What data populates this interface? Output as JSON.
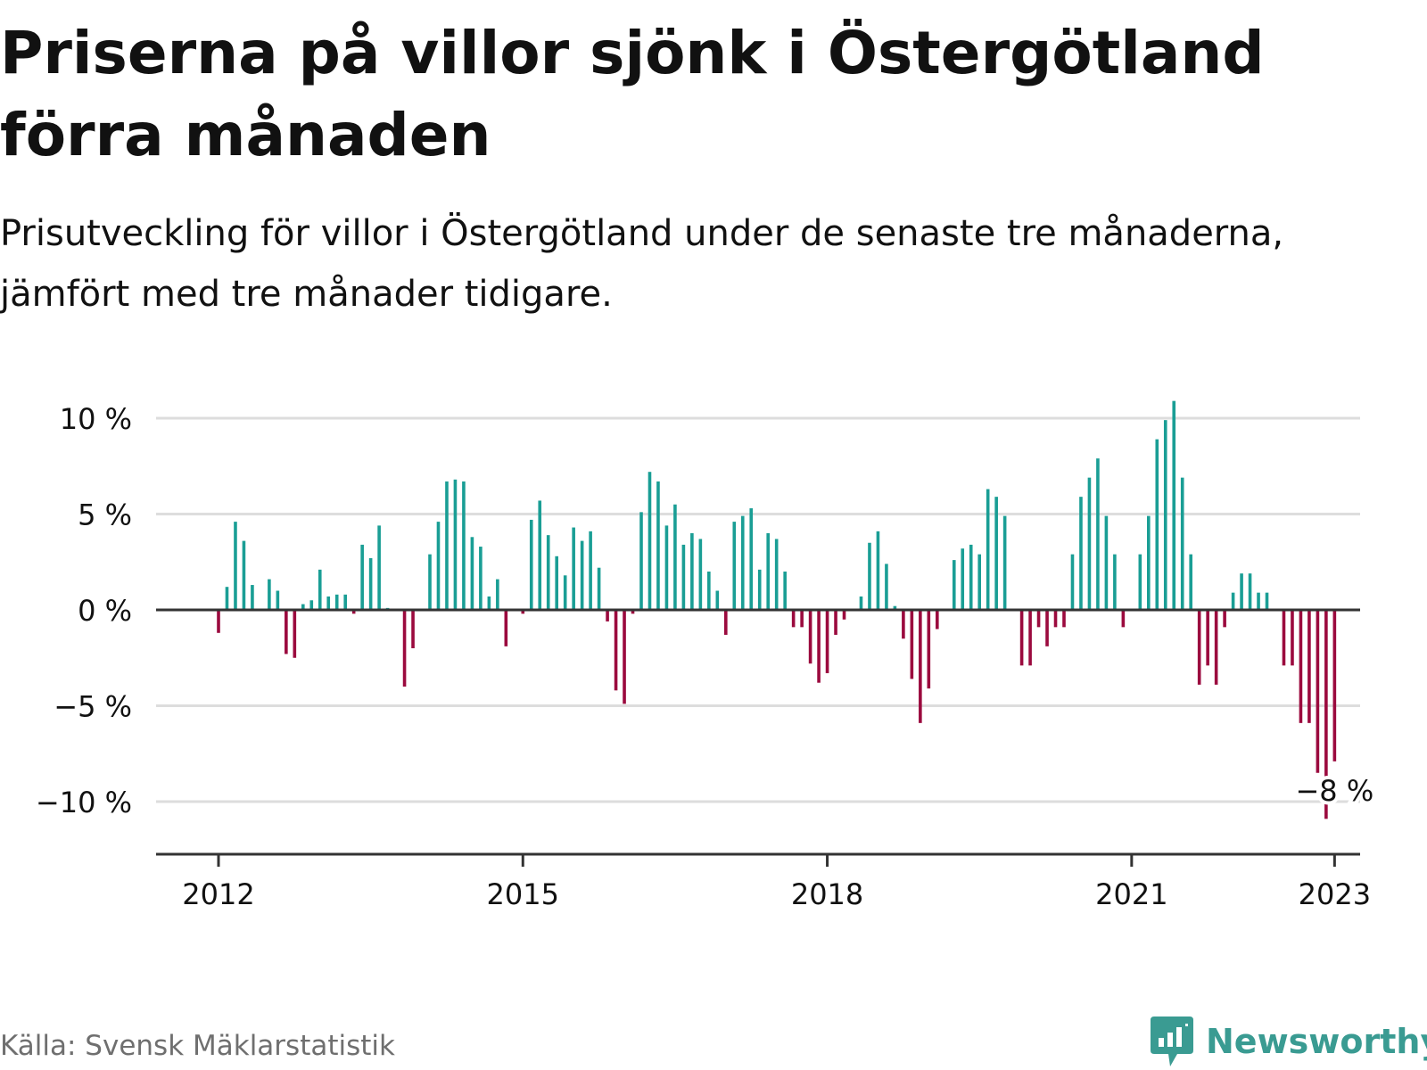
{
  "title": "Priserna på villor sjönk i Östergötland förra månaden",
  "subtitle": "Prisutveckling för villor i Östergötland under de senaste tre månaderna, jämfört med tre månader tidigare.",
  "source": "Källa: Svensk Mäklarstatistik",
  "brand": {
    "name": "Newsworthy",
    "icon": "newsworthy-logo-icon"
  },
  "colors": {
    "positive": "#1a9e95",
    "negative": "#9b0a3e",
    "text": "#111111",
    "grid": "#dddddd",
    "axis": "#333333",
    "muted": "#6f6f6f",
    "brand": "#3a9b92"
  },
  "chart_data": {
    "type": "bar",
    "ylim": [
      -12.5,
      12
    ],
    "yticks": [
      {
        "value": 10,
        "label": "10 %"
      },
      {
        "value": 5,
        "label": "5 %"
      },
      {
        "value": 0,
        "label": "0 %"
      },
      {
        "value": -5,
        "label": "−5 %"
      },
      {
        "value": -10,
        "label": "−10 %"
      }
    ],
    "xticks": [
      {
        "month": "2012-01",
        "label": "2012"
      },
      {
        "month": "2015-01",
        "label": "2015"
      },
      {
        "month": "2018-01",
        "label": "2018"
      },
      {
        "month": "2021-01",
        "label": "2021"
      },
      {
        "month": "2023-01",
        "label": "2023"
      }
    ],
    "grid": true,
    "annotation": {
      "month": "2023-01",
      "text": "−8 %"
    },
    "points": [
      {
        "month": "2012-01",
        "value": -1.2
      },
      {
        "month": "2012-02",
        "value": 1.2
      },
      {
        "month": "2012-03",
        "value": 4.6
      },
      {
        "month": "2012-04",
        "value": 3.6
      },
      {
        "month": "2012-05",
        "value": 1.3
      },
      {
        "month": "2012-07",
        "value": 1.6
      },
      {
        "month": "2012-08",
        "value": 1.0
      },
      {
        "month": "2012-09",
        "value": -2.3
      },
      {
        "month": "2012-10",
        "value": -2.5
      },
      {
        "month": "2012-11",
        "value": 0.3
      },
      {
        "month": "2012-12",
        "value": 0.5
      },
      {
        "month": "2013-01",
        "value": 2.1
      },
      {
        "month": "2013-02",
        "value": 0.7
      },
      {
        "month": "2013-03",
        "value": 0.8
      },
      {
        "month": "2013-04",
        "value": 0.8
      },
      {
        "month": "2013-05",
        "value": -0.2
      },
      {
        "month": "2013-06",
        "value": 3.4
      },
      {
        "month": "2013-07",
        "value": 2.7
      },
      {
        "month": "2013-08",
        "value": 4.4
      },
      {
        "month": "2013-09",
        "value": 0.1
      },
      {
        "month": "2013-11",
        "value": -4.0
      },
      {
        "month": "2013-12",
        "value": -2.0
      },
      {
        "month": "2014-02",
        "value": 2.9
      },
      {
        "month": "2014-03",
        "value": 4.6
      },
      {
        "month": "2014-04",
        "value": 6.7
      },
      {
        "month": "2014-05",
        "value": 6.8
      },
      {
        "month": "2014-06",
        "value": 6.7
      },
      {
        "month": "2014-07",
        "value": 3.8
      },
      {
        "month": "2014-08",
        "value": 3.3
      },
      {
        "month": "2014-09",
        "value": 0.7
      },
      {
        "month": "2014-10",
        "value": 1.6
      },
      {
        "month": "2014-11",
        "value": -1.9
      },
      {
        "month": "2014-12",
        "value": 0.0
      },
      {
        "month": "2015-01",
        "value": -0.2
      },
      {
        "month": "2015-02",
        "value": 4.7
      },
      {
        "month": "2015-03",
        "value": 5.7
      },
      {
        "month": "2015-04",
        "value": 3.9
      },
      {
        "month": "2015-05",
        "value": 2.8
      },
      {
        "month": "2015-06",
        "value": 1.8
      },
      {
        "month": "2015-07",
        "value": 4.3
      },
      {
        "month": "2015-08",
        "value": 3.6
      },
      {
        "month": "2015-09",
        "value": 4.1
      },
      {
        "month": "2015-10",
        "value": 2.2
      },
      {
        "month": "2015-11",
        "value": -0.6
      },
      {
        "month": "2015-12",
        "value": -4.2
      },
      {
        "month": "2016-01",
        "value": -4.9
      },
      {
        "month": "2016-02",
        "value": -0.2
      },
      {
        "month": "2016-03",
        "value": 5.1
      },
      {
        "month": "2016-04",
        "value": 7.2
      },
      {
        "month": "2016-05",
        "value": 6.7
      },
      {
        "month": "2016-06",
        "value": 4.4
      },
      {
        "month": "2016-07",
        "value": 5.5
      },
      {
        "month": "2016-08",
        "value": 3.4
      },
      {
        "month": "2016-09",
        "value": 4.0
      },
      {
        "month": "2016-10",
        "value": 3.7
      },
      {
        "month": "2016-11",
        "value": 2.0
      },
      {
        "month": "2016-12",
        "value": 1.0
      },
      {
        "month": "2017-01",
        "value": -1.3
      },
      {
        "month": "2017-02",
        "value": 4.6
      },
      {
        "month": "2017-03",
        "value": 4.9
      },
      {
        "month": "2017-04",
        "value": 5.3
      },
      {
        "month": "2017-05",
        "value": 2.1
      },
      {
        "month": "2017-06",
        "value": 4.0
      },
      {
        "month": "2017-07",
        "value": 3.7
      },
      {
        "month": "2017-08",
        "value": 2.0
      },
      {
        "month": "2017-09",
        "value": -0.9
      },
      {
        "month": "2017-10",
        "value": -0.9
      },
      {
        "month": "2017-11",
        "value": -2.8
      },
      {
        "month": "2017-12",
        "value": -3.8
      },
      {
        "month": "2018-01",
        "value": -3.3
      },
      {
        "month": "2018-02",
        "value": -1.3
      },
      {
        "month": "2018-03",
        "value": -0.5
      },
      {
        "month": "2018-05",
        "value": 0.7
      },
      {
        "month": "2018-06",
        "value": 3.5
      },
      {
        "month": "2018-07",
        "value": 4.1
      },
      {
        "month": "2018-08",
        "value": 2.4
      },
      {
        "month": "2018-09",
        "value": 0.2
      },
      {
        "month": "2018-10",
        "value": -1.5
      },
      {
        "month": "2018-11",
        "value": -3.6
      },
      {
        "month": "2018-12",
        "value": -5.9
      },
      {
        "month": "2019-01",
        "value": -4.1
      },
      {
        "month": "2019-02",
        "value": -1.0
      },
      {
        "month": "2019-03",
        "value": 0.0
      },
      {
        "month": "2019-04",
        "value": 2.6
      },
      {
        "month": "2019-05",
        "value": 3.2
      },
      {
        "month": "2019-06",
        "value": 3.4
      },
      {
        "month": "2019-07",
        "value": 2.9
      },
      {
        "month": "2019-08",
        "value": 6.3
      },
      {
        "month": "2019-09",
        "value": 5.9
      },
      {
        "month": "2019-10",
        "value": 4.9
      },
      {
        "month": "2019-12",
        "value": -2.9
      },
      {
        "month": "2020-01",
        "value": -2.9
      },
      {
        "month": "2020-02",
        "value": -0.9
      },
      {
        "month": "2020-03",
        "value": -1.9
      },
      {
        "month": "2020-04",
        "value": -0.9
      },
      {
        "month": "2020-05",
        "value": -0.9
      },
      {
        "month": "2020-06",
        "value": 2.9
      },
      {
        "month": "2020-07",
        "value": 5.9
      },
      {
        "month": "2020-08",
        "value": 6.9
      },
      {
        "month": "2020-09",
        "value": 7.9
      },
      {
        "month": "2020-10",
        "value": 4.9
      },
      {
        "month": "2020-11",
        "value": 2.9
      },
      {
        "month": "2020-12",
        "value": -0.9
      },
      {
        "month": "2021-02",
        "value": 2.9
      },
      {
        "month": "2021-03",
        "value": 4.9
      },
      {
        "month": "2021-04",
        "value": 8.9
      },
      {
        "month": "2021-05",
        "value": 9.9
      },
      {
        "month": "2021-06",
        "value": 10.9
      },
      {
        "month": "2021-07",
        "value": 6.9
      },
      {
        "month": "2021-08",
        "value": 2.9
      },
      {
        "month": "2021-09",
        "value": -3.9
      },
      {
        "month": "2021-10",
        "value": -2.9
      },
      {
        "month": "2021-11",
        "value": -3.9
      },
      {
        "month": "2021-12",
        "value": -0.9
      },
      {
        "month": "2022-01",
        "value": 0.9
      },
      {
        "month": "2022-02",
        "value": 1.9
      },
      {
        "month": "2022-03",
        "value": 1.9
      },
      {
        "month": "2022-04",
        "value": 0.9
      },
      {
        "month": "2022-05",
        "value": 0.9
      },
      {
        "month": "2022-07",
        "value": -2.9
      },
      {
        "month": "2022-08",
        "value": -2.9
      },
      {
        "month": "2022-09",
        "value": -5.9
      },
      {
        "month": "2022-10",
        "value": -5.9
      },
      {
        "month": "2022-11",
        "value": -8.5
      },
      {
        "month": "2022-12",
        "value": -10.9
      },
      {
        "month": "2023-01",
        "value": -7.9
      }
    ]
  }
}
